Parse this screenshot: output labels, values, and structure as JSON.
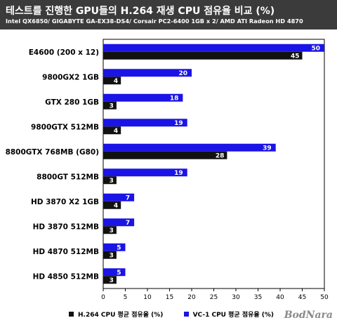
{
  "header": {
    "title": "테스트를 진행한 GPU들의 H.264 재생 CPU 점유율 비교 (%)",
    "subtitle": "Intel QX6850/ GIGABYTE GA-EX38-DS4/ Corsair PC2-6400 1GB x 2/ AMD ATI Radeon HD 4870"
  },
  "logo": "BodNara",
  "colors": {
    "h264": "#111111",
    "vc1": "#1a14e6",
    "header_bg": "#3b3b3b"
  },
  "chart_data": {
    "type": "bar",
    "orientation": "horizontal",
    "categories": [
      "E4600 (200 x 12)",
      "9800GX2 1GB",
      "GTX 280 1GB",
      "9800GTX 512MB",
      "8800GTX 768MB (G80)",
      "8800GT 512MB",
      "HD 3870 X2 1GB",
      "HD 3870 512MB",
      "HD 4870 512MB",
      "HD 4850 512MB"
    ],
    "series": [
      {
        "name": "VC-1 CPU 평균 점유율 (%)",
        "values": [
          50,
          20,
          18,
          19,
          39,
          19,
          7,
          7,
          5,
          5
        ]
      },
      {
        "name": "H.264 CPU 평균 점유율 (%)",
        "values": [
          45,
          4,
          3,
          4,
          28,
          3,
          4,
          3,
          3,
          3
        ]
      }
    ],
    "xlim": [
      0,
      50
    ],
    "xticks": [
      0,
      5,
      10,
      15,
      20,
      25,
      30,
      35,
      40,
      45,
      50
    ],
    "legend_position": "bottom"
  }
}
